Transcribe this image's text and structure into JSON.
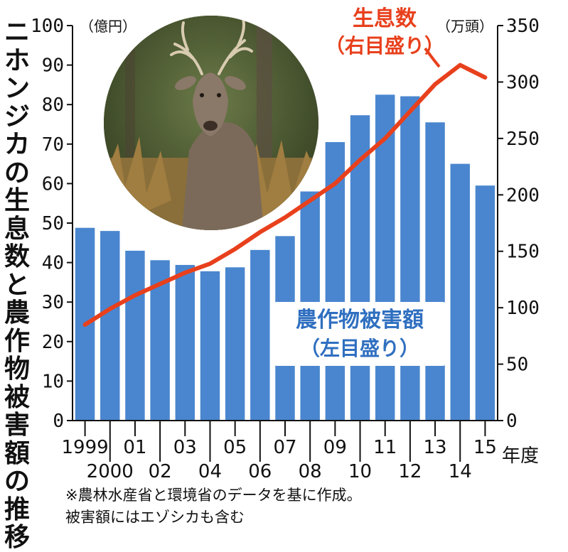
{
  "title": "ニホンジカの生息数と農作物被害額の推移",
  "note_line1": "※農林水産省と環境省のデータを基に作成。",
  "note_line2": "被害額にはエゾシカも含む",
  "photo_subject": "sika deer",
  "chart_data": {
    "type": "bar+line",
    "x": [
      "1999",
      "2000",
      "01",
      "02",
      "03",
      "04",
      "05",
      "06",
      "07",
      "08",
      "09",
      "10",
      "11",
      "12",
      "13",
      "14",
      "15"
    ],
    "x_tick_labels_row1": [
      "1999",
      "01",
      "03",
      "05",
      "07",
      "09",
      "11",
      "13",
      "15"
    ],
    "x_tick_labels_row2": [
      "2000",
      "02",
      "04",
      "06",
      "08",
      "10",
      "12",
      "14"
    ],
    "xlabel": "年度",
    "left_axis": {
      "unit": "（億円）",
      "ylim": [
        0,
        100
      ],
      "ticks": [
        0,
        10,
        20,
        30,
        40,
        50,
        60,
        70,
        80,
        90,
        100
      ]
    },
    "right_axis": {
      "unit": "（万頭）",
      "ylim": [
        0,
        350
      ],
      "ticks": [
        0,
        50,
        100,
        150,
        200,
        250,
        300,
        350
      ]
    },
    "series": [
      {
        "name_line1": "農作物被害額",
        "name_line2": "（左目盛り）",
        "type": "bar",
        "axis": "left",
        "color": "#4a86cf",
        "values": [
          48.8,
          48.0,
          43.0,
          40.6,
          39.4,
          37.8,
          38.8,
          43.2,
          46.7,
          58.0,
          70.5,
          77.3,
          82.5,
          82.1,
          75.5,
          65.0,
          59.5
        ]
      },
      {
        "name_line1": "生息数",
        "name_line2": "（右目盛り）",
        "type": "line",
        "axis": "right",
        "color": "#e8401c",
        "values": [
          85,
          99,
          111,
          121,
          131,
          139,
          152,
          167,
          180,
          195,
          210,
          231,
          250,
          274,
          298,
          315,
          304
        ]
      }
    ]
  }
}
